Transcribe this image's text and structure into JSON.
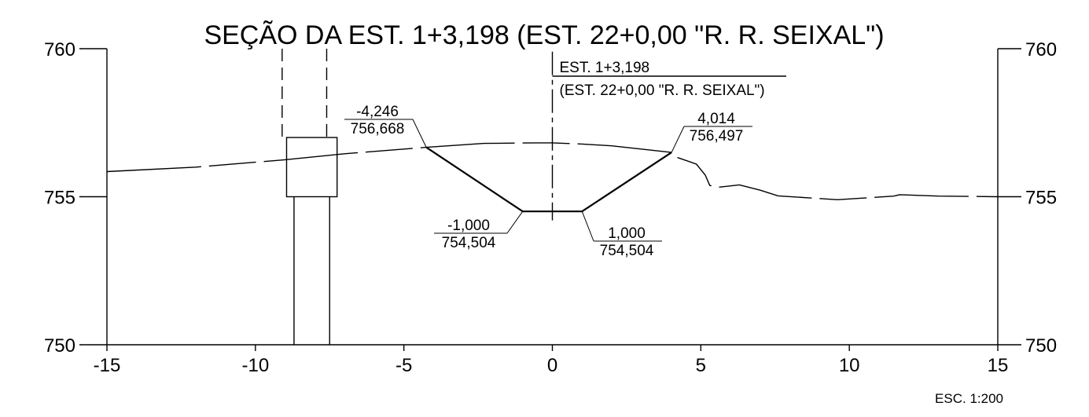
{
  "title": "SEÇÃO DA EST. 1+3,198 (EST. 22+0,00 \"R. R. SEIXAL\")",
  "scale_note": "ESC. 1:200",
  "x_ticks": [
    "-15",
    "-10",
    "-5",
    "0",
    "5",
    "10",
    "15"
  ],
  "y_ticks_left": [
    "760",
    "755",
    "750"
  ],
  "y_ticks_right": [
    "760",
    "755",
    "750"
  ],
  "x_range": [
    -15,
    15
  ],
  "y_range": [
    750,
    760
  ],
  "station_label": {
    "line1": "EST. 1+3,198",
    "line2": "(EST. 22+0,00 \"R. R. SEIXAL\")"
  },
  "annotations": {
    "left_top": {
      "offset": "-4,246",
      "elevation": "756,668",
      "x": -4.246,
      "y": 756.668
    },
    "left_bottom": {
      "offset": "-1,000",
      "elevation": "754,504",
      "x": -1.0,
      "y": 754.504
    },
    "right_bottom": {
      "offset": "1,000",
      "elevation": "754,504",
      "x": 1.0,
      "y": 754.504
    },
    "right_top": {
      "offset": "4,014",
      "elevation": "756,497",
      "x": 4.014,
      "y": 756.497
    }
  },
  "terrain_profile": [
    [
      -15.0,
      755.85
    ],
    [
      -12.0,
      756.0
    ],
    [
      -9.0,
      756.25
    ],
    [
      -7.0,
      756.45
    ],
    [
      -4.246,
      756.668
    ],
    [
      -2.3,
      756.8
    ],
    [
      -0.5,
      756.82
    ],
    [
      0.0,
      756.82
    ],
    [
      1.0,
      756.78
    ],
    [
      2.0,
      756.72
    ],
    [
      4.014,
      756.497
    ],
    [
      4.2,
      756.33
    ],
    [
      4.85,
      756.1
    ],
    [
      5.15,
      755.73
    ],
    [
      5.3,
      755.38
    ],
    [
      5.6,
      755.32
    ],
    [
      6.3,
      755.4
    ],
    [
      7.0,
      755.22
    ],
    [
      7.6,
      755.03
    ],
    [
      9.6,
      754.9
    ],
    [
      11.5,
      755.02
    ],
    [
      11.7,
      755.07
    ],
    [
      13.0,
      755.02
    ],
    [
      15.0,
      755.0
    ]
  ],
  "template_section": [
    [
      -4.246,
      756.668
    ],
    [
      -1.0,
      754.504
    ],
    [
      1.0,
      754.504
    ],
    [
      4.014,
      756.497
    ]
  ],
  "structure": {
    "box": {
      "x0": -8.95,
      "x1": -7.25,
      "y0": 755.0,
      "y1": 757.0
    },
    "column": {
      "x0": -8.7,
      "x1": -7.5,
      "y0": 750.0,
      "y1": 755.0
    },
    "dashed_guides": [
      -9.1,
      -7.6
    ]
  },
  "centerline_range": [
    754.2,
    759.9
  ]
}
